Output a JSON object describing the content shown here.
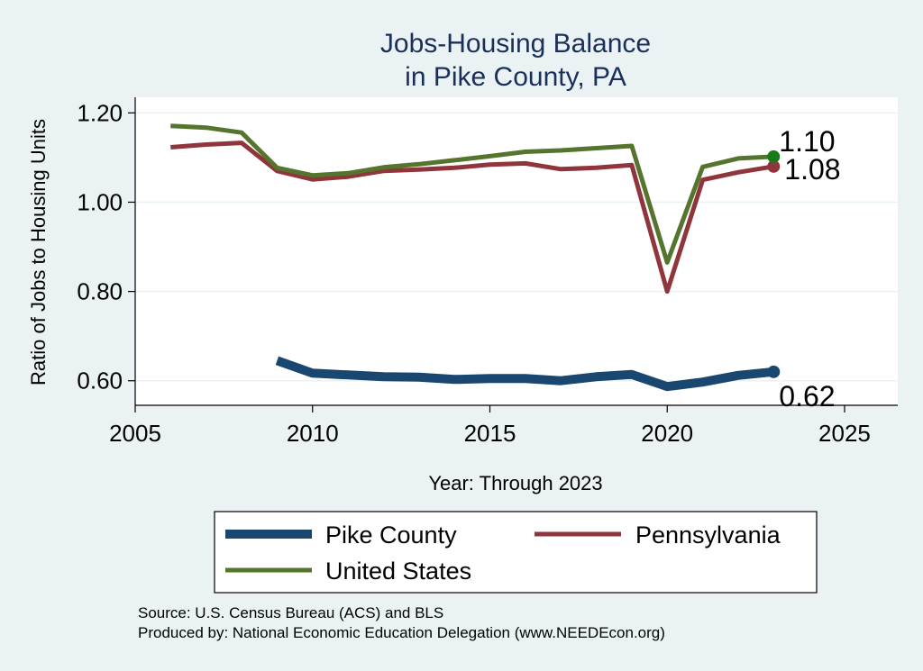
{
  "chart_data": {
    "type": "line",
    "title": [
      "Jobs-Housing Balance",
      "in Pike County, PA"
    ],
    "xlabel": "Year: Through 2023",
    "ylabel": "Ratio of Jobs to Housing Units",
    "xlim": [
      2005,
      2026.5
    ],
    "ylim": [
      0.545,
      1.235
    ],
    "xticks": [
      2005,
      2010,
      2015,
      2020,
      2025
    ],
    "yticks": [
      0.6,
      0.8,
      1.0,
      1.2
    ],
    "ytick_labels": [
      "0.60",
      "0.80",
      "1.00",
      "1.20"
    ],
    "grid": true,
    "series": [
      {
        "name": "Pike County",
        "color": "#1a476f",
        "x": [
          2009,
          2010,
          2011,
          2012,
          2013,
          2014,
          2015,
          2016,
          2017,
          2018,
          2019,
          2020,
          2021,
          2022,
          2023
        ],
        "values": [
          0.645,
          0.617,
          0.613,
          0.609,
          0.608,
          0.603,
          0.605,
          0.605,
          0.6,
          0.609,
          0.614,
          0.587,
          0.597,
          0.612,
          0.62
        ],
        "end_label": "0.62"
      },
      {
        "name": "Pennsylvania",
        "color": "#90353b",
        "x": [
          2006,
          2007,
          2008,
          2009,
          2010,
          2011,
          2012,
          2013,
          2014,
          2015,
          2016,
          2017,
          2018,
          2019,
          2020,
          2021,
          2022,
          2023
        ],
        "values": [
          1.123,
          1.129,
          1.133,
          1.07,
          1.051,
          1.057,
          1.07,
          1.073,
          1.077,
          1.084,
          1.087,
          1.074,
          1.077,
          1.083,
          0.8,
          1.05,
          1.067,
          1.08
        ],
        "end_label": "1.08"
      },
      {
        "name": "United States",
        "color": "#55752f",
        "x": [
          2006,
          2007,
          2008,
          2009,
          2010,
          2011,
          2012,
          2013,
          2014,
          2015,
          2016,
          2017,
          2018,
          2019,
          2020,
          2021,
          2022,
          2023
        ],
        "values": [
          1.171,
          1.167,
          1.156,
          1.077,
          1.06,
          1.065,
          1.078,
          1.085,
          1.094,
          1.103,
          1.113,
          1.116,
          1.121,
          1.126,
          0.865,
          1.079,
          1.098,
          1.102
        ],
        "end_label": "1.10"
      }
    ],
    "end_markers": [
      {
        "series": "Pike County",
        "color": "#1a476f"
      },
      {
        "series": "Pennsylvania",
        "color": "#90353b"
      },
      {
        "series": "United States",
        "color": "#1a7a1a"
      }
    ],
    "legend": [
      "Pike County",
      "Pennsylvania",
      "United States"
    ],
    "legend_position": "bottom"
  },
  "notes": {
    "source": "Source: U.S. Census Bureau (ACS) and BLS",
    "produced_by": "Produced by: National Economic Education Delegation (www.NEEDEcon.org)"
  }
}
